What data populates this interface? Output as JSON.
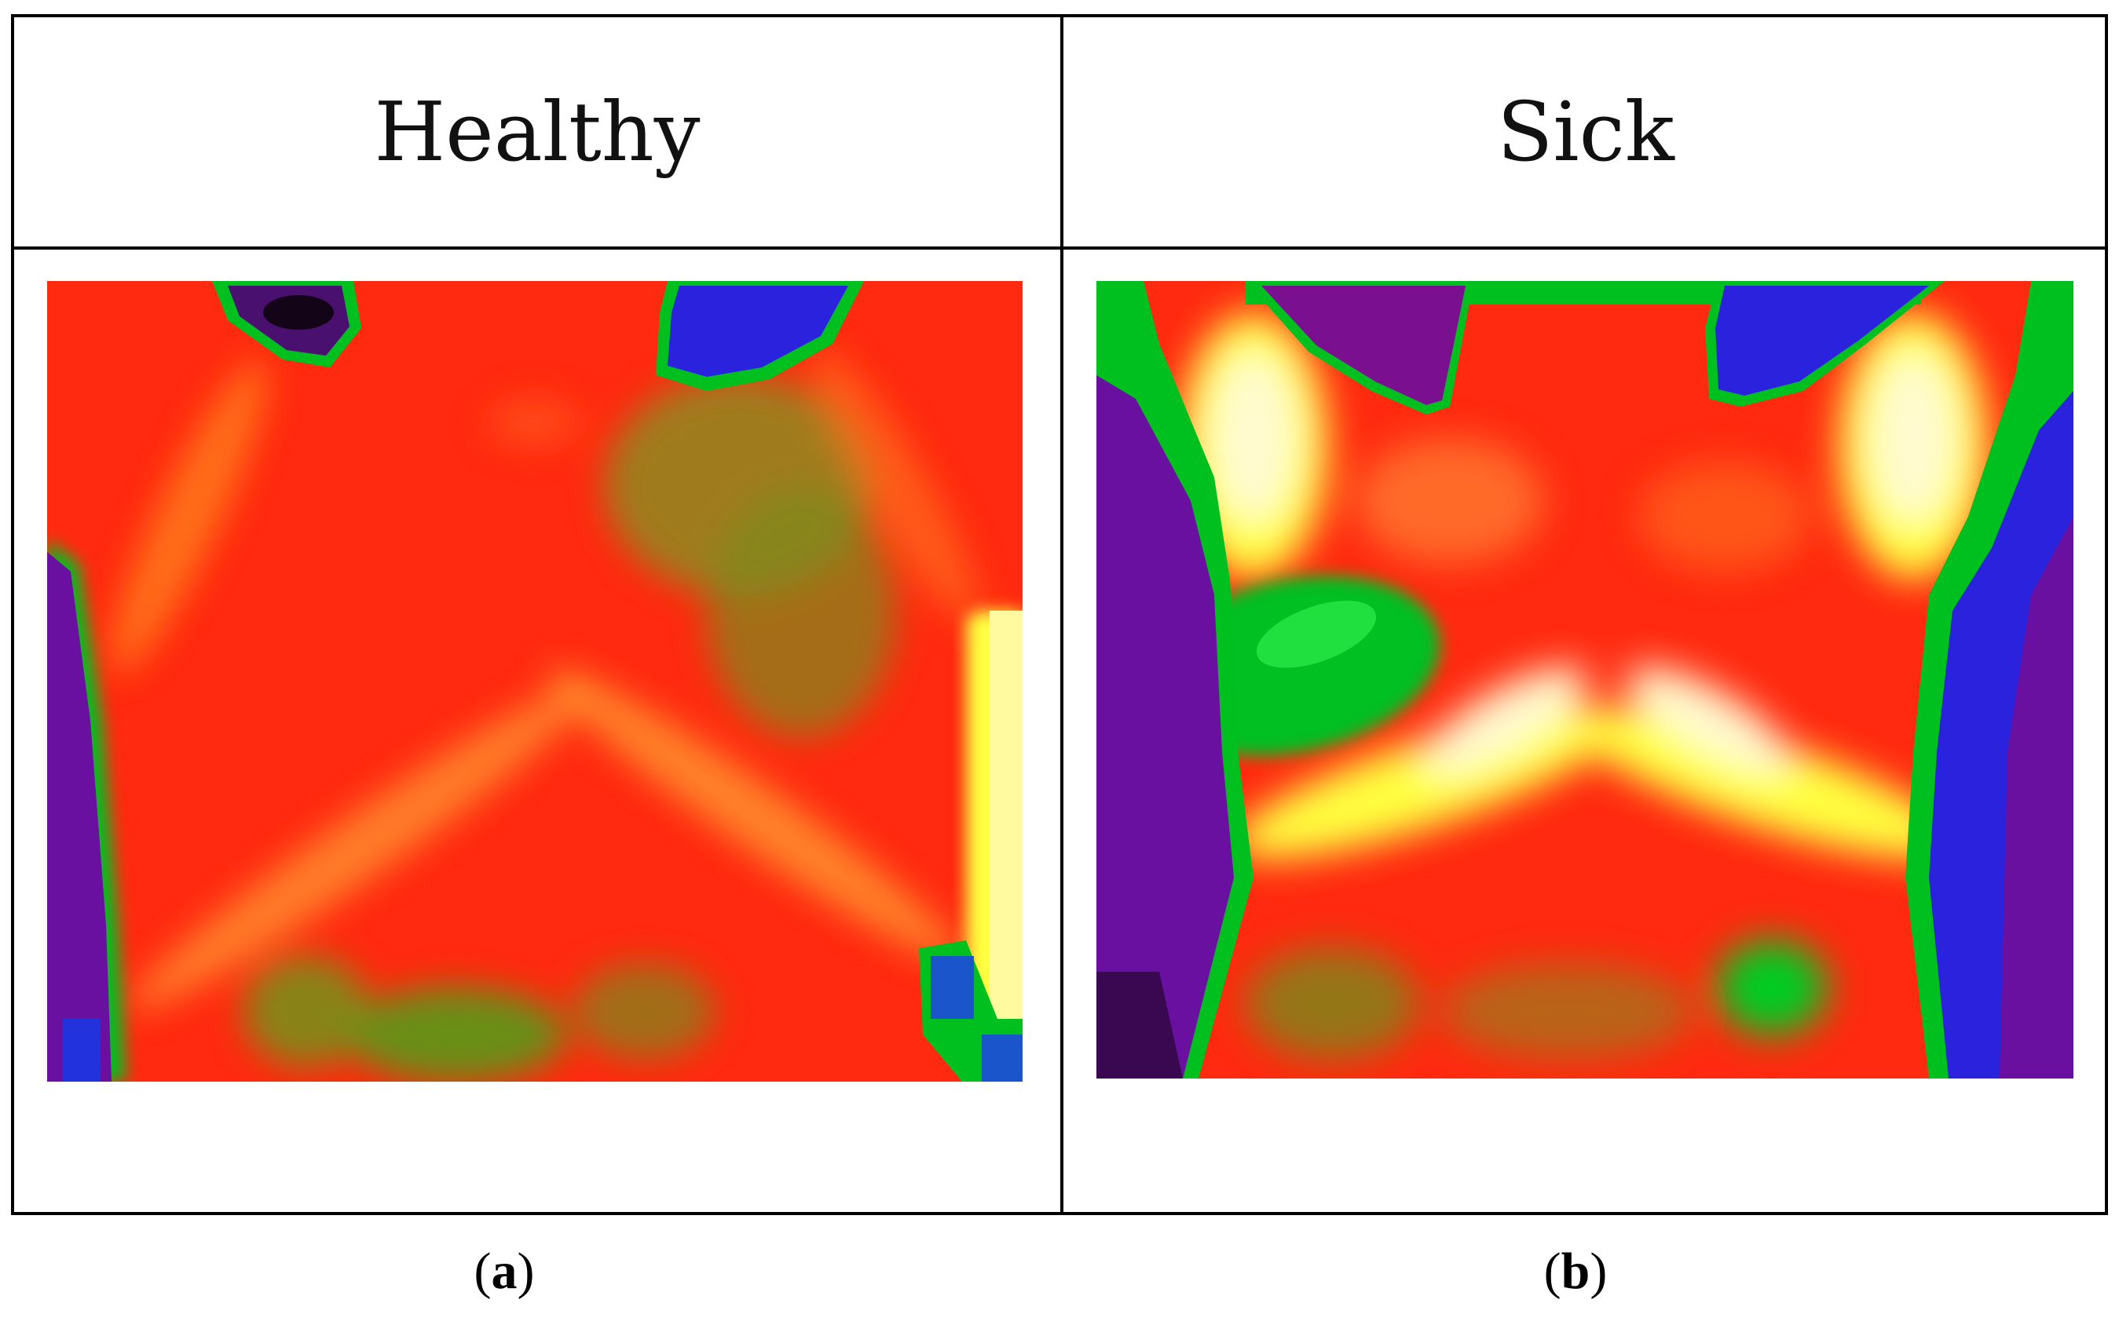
{
  "figure": {
    "headers": {
      "left": "Healthy",
      "right": "Sick"
    },
    "captions": {
      "a_letter": "a",
      "b_letter": "b"
    },
    "palette": {
      "red": "#ff2a10",
      "orange": "#ff6a14",
      "yellow": "#ffff40",
      "white_hot": "#fffbd0",
      "green": "#00cc22",
      "olive": "#8a8a1e",
      "blue": "#2233dd",
      "purple": "#6a10a0",
      "dark": "#1a0420"
    }
  }
}
